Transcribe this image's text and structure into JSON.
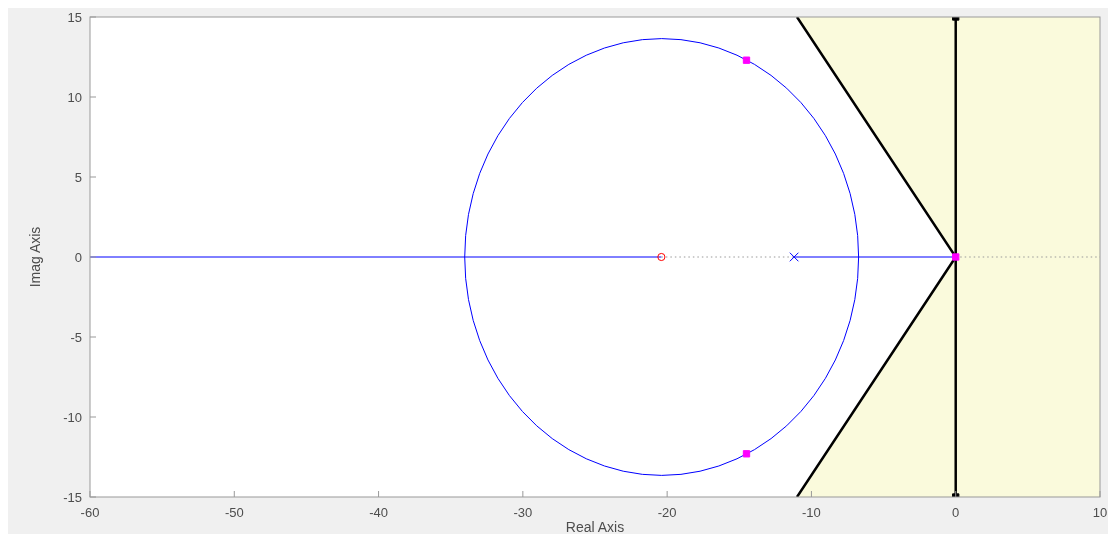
{
  "chart_data": {
    "type": "line",
    "xlabel": "Real Axis",
    "ylabel": "Imag Axis",
    "xlim": [
      -60,
      10
    ],
    "ylim": [
      -15,
      15
    ],
    "xticks": [
      -60,
      -50,
      -40,
      -30,
      -20,
      -10,
      0,
      10
    ],
    "yticks": [
      -15,
      -10,
      -5,
      0,
      5,
      10,
      15
    ],
    "grid": false,
    "bands": [
      {
        "axis": "x",
        "from": -11,
        "to": 10,
        "color": "#fafadc"
      }
    ],
    "series": [
      {
        "color": "#000000",
        "x": [
          -11,
          0,
          -11
        ],
        "values": [
          15,
          0,
          -15
        ],
        "marker": "none"
      },
      {
        "color": "#000000",
        "x": [
          0,
          0
        ],
        "values": [
          15,
          -15
        ],
        "marker": "square"
      },
      {
        "color": "#0000ff",
        "x": [
          -60,
          -20.4
        ],
        "values": [
          0,
          0
        ],
        "marker": "none"
      },
      {
        "color": "#0000ff",
        "x": [
          -11.2,
          0
        ],
        "values": [
          0,
          0
        ],
        "marker": "none"
      },
      {
        "color": "#999999",
        "x": [
          -20.4,
          -11.2
        ],
        "values": [
          0,
          0
        ],
        "marker": "none",
        "line_style": "dotted"
      },
      {
        "color": "#999999",
        "x": [
          0,
          10
        ],
        "values": [
          0,
          0
        ],
        "marker": "none",
        "line_style": "dotted"
      },
      {
        "type": "scatter",
        "color": "#ff0000",
        "x": [
          -20.4
        ],
        "values": [
          0
        ],
        "marker": "circle"
      },
      {
        "type": "scatter",
        "color": "#0000ff",
        "x": [
          -11.2
        ],
        "values": [
          0
        ],
        "marker": "cross"
      },
      {
        "type": "scatter",
        "color": "#ff00ff",
        "x": [
          -14.5,
          -14.5,
          0
        ],
        "values": [
          12.3,
          -12.3,
          0
        ],
        "marker": "square"
      }
    ]
  }
}
